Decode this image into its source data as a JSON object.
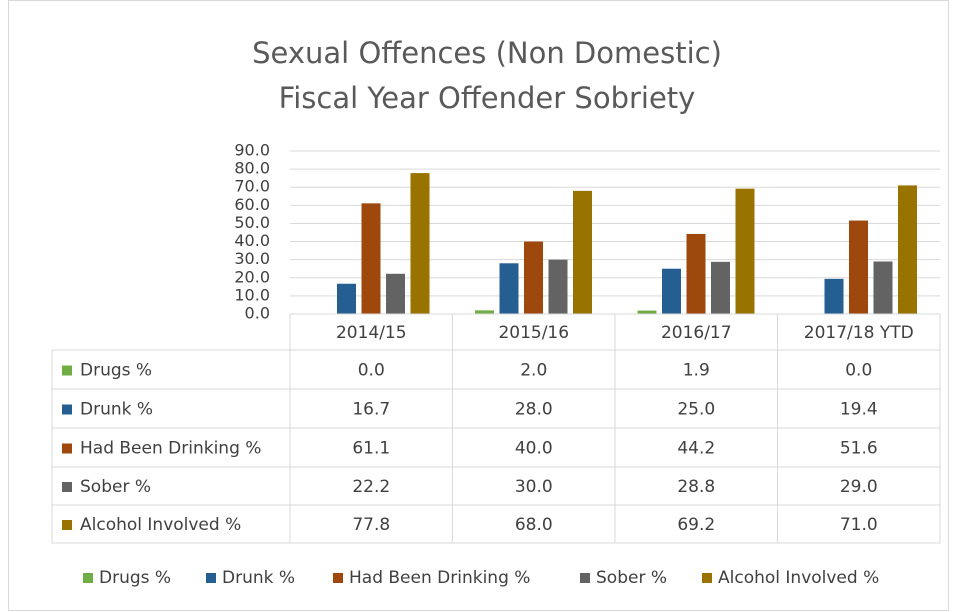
{
  "chart_data": {
    "type": "bar",
    "title": "Sexual Offences (Non Domestic)",
    "subtitle": "Fiscal Year Offender Sobriety",
    "categories": [
      "2014/15",
      "2015/16",
      "2016/17",
      "2017/18 YTD"
    ],
    "series": [
      {
        "name": "Drugs %",
        "color": "#70ad47",
        "values": [
          0,
          2,
          1.9,
          0
        ],
        "value_labels": [
          "0.0",
          "2.0",
          "1.9",
          "0.0"
        ]
      },
      {
        "name": "Drunk %",
        "color": "#255e91",
        "values": [
          16.7,
          28,
          25,
          19.4
        ],
        "value_labels": [
          "16.7",
          "28.0",
          "25.0",
          "19.4"
        ]
      },
      {
        "name": "Had Been Drinking %",
        "color": "#9e480e",
        "values": [
          61.1,
          40,
          44.2,
          51.6
        ],
        "value_labels": [
          "61.1",
          "40.0",
          "44.2",
          "51.6"
        ]
      },
      {
        "name": "Sober %",
        "color": "#636363",
        "values": [
          22.2,
          30,
          28.8,
          29
        ],
        "value_labels": [
          "22.2",
          "30.0",
          "28.8",
          "29.0"
        ]
      },
      {
        "name": "Alcohol Involved %",
        "color": "#997300",
        "values": [
          77.8,
          68,
          69.2,
          71
        ],
        "value_labels": [
          "77.8",
          "68.0",
          "69.2",
          "71.0"
        ]
      }
    ],
    "ylim": [
      0,
      90
    ],
    "yticks": [
      {
        "value": 0,
        "label": "0.0"
      },
      {
        "value": 10,
        "label": "10.0"
      },
      {
        "value": 20,
        "label": "20.0"
      },
      {
        "value": 30,
        "label": "30.0"
      },
      {
        "value": 40,
        "label": "40.0"
      },
      {
        "value": 50,
        "label": "50.0"
      },
      {
        "value": 60,
        "label": "60.0"
      },
      {
        "value": 70,
        "label": "70.0"
      },
      {
        "value": 80,
        "label": "80.0"
      },
      {
        "value": 90,
        "label": "90.0"
      }
    ],
    "grid": true,
    "legend": "bottom"
  }
}
